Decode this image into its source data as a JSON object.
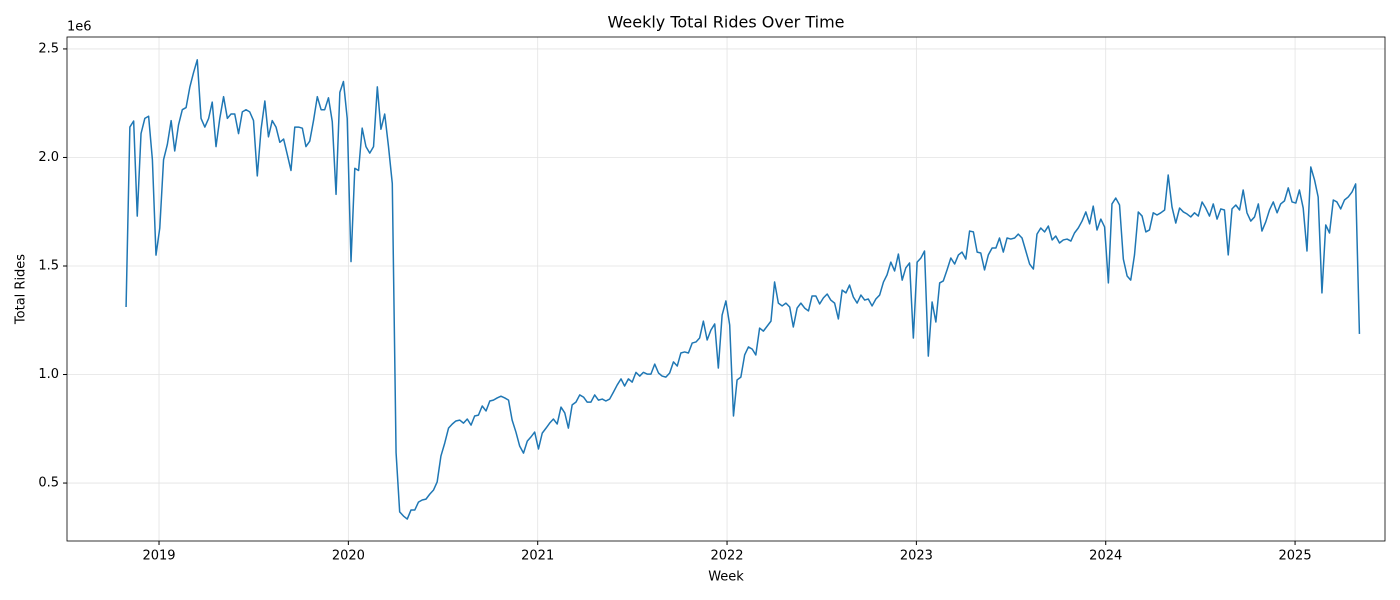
{
  "chart_data": {
    "type": "line",
    "title": "Weekly Total Rides Over Time",
    "x_label": "Week",
    "y_label": "Total Rides",
    "y_offset_label": "1e6",
    "color": "#1f77b4",
    "grid": true,
    "xlim": [
      2018.514,
      2025.475
    ],
    "xticks": [
      2019,
      2020,
      2021,
      2022,
      2023,
      2024,
      2025
    ],
    "ylim": [
      0.233,
      2.555
    ],
    "yticks": [
      0.5,
      {
        "value": 1,
        "label": "1.0"
      },
      1.5,
      {
        "value": 2,
        "label": "2.0"
      },
      2.5
    ],
    "x": [
      2018.826,
      2018.846,
      2018.866,
      2018.885,
      2018.905,
      2018.925,
      2018.945,
      2018.965,
      2018.984,
      2019.004,
      2019.024,
      2019.044,
      2019.064,
      2019.083,
      2019.103,
      2019.123,
      2019.143,
      2019.163,
      2019.182,
      2019.202,
      2019.222,
      2019.242,
      2019.262,
      2019.281,
      2019.301,
      2019.321,
      2019.341,
      2019.361,
      2019.38,
      2019.4,
      2019.42,
      2019.44,
      2019.46,
      2019.479,
      2019.499,
      2019.519,
      2019.539,
      2019.559,
      2019.578,
      2019.598,
      2019.618,
      2019.638,
      2019.658,
      2019.677,
      2019.697,
      2019.717,
      2019.737,
      2019.757,
      2019.776,
      2019.796,
      2019.816,
      2019.836,
      2019.856,
      2019.875,
      2019.895,
      2019.915,
      2019.935,
      2019.955,
      2019.974,
      2019.994,
      2020.014,
      2020.034,
      2020.054,
      2020.073,
      2020.093,
      2020.113,
      2020.133,
      2020.153,
      2020.172,
      2020.192,
      2020.212,
      2020.232,
      2020.252,
      2020.271,
      2020.291,
      2020.311,
      2020.331,
      2020.351,
      2020.37,
      2020.39,
      2020.41,
      2020.43,
      2020.45,
      2020.469,
      2020.489,
      2020.509,
      2020.529,
      2020.549,
      2020.568,
      2020.588,
      2020.608,
      2020.628,
      2020.648,
      2020.667,
      2020.687,
      2020.707,
      2020.727,
      2020.747,
      2020.766,
      2020.786,
      2020.806,
      2020.826,
      2020.846,
      2020.865,
      2020.885,
      2020.905,
      2020.925,
      2020.945,
      2020.964,
      2020.984,
      2021.004,
      2021.024,
      2021.044,
      2021.063,
      2021.083,
      2021.103,
      2021.123,
      2021.143,
      2021.162,
      2021.182,
      2021.202,
      2021.222,
      2021.242,
      2021.261,
      2021.281,
      2021.301,
      2021.321,
      2021.341,
      2021.36,
      2021.38,
      2021.4,
      2021.42,
      2021.44,
      2021.459,
      2021.479,
      2021.499,
      2021.519,
      2021.539,
      2021.558,
      2021.578,
      2021.598,
      2021.618,
      2021.638,
      2021.657,
      2021.677,
      2021.697,
      2021.717,
      2021.737,
      2021.756,
      2021.776,
      2021.796,
      2021.816,
      2021.836,
      2021.855,
      2021.875,
      2021.895,
      2021.915,
      2021.935,
      2021.954,
      2021.974,
      2021.994,
      2022.014,
      2022.034,
      2022.053,
      2022.073,
      2022.093,
      2022.113,
      2022.133,
      2022.152,
      2022.172,
      2022.192,
      2022.212,
      2022.232,
      2022.251,
      2022.271,
      2022.291,
      2022.311,
      2022.331,
      2022.35,
      2022.37,
      2022.39,
      2022.41,
      2022.43,
      2022.449,
      2022.469,
      2022.489,
      2022.509,
      2022.529,
      2022.548,
      2022.568,
      2022.588,
      2022.608,
      2022.628,
      2022.647,
      2022.667,
      2022.687,
      2022.707,
      2022.727,
      2022.746,
      2022.766,
      2022.786,
      2022.806,
      2022.826,
      2022.845,
      2022.865,
      2022.885,
      2022.905,
      2022.925,
      2022.944,
      2022.964,
      2022.984,
      2023.004,
      2023.024,
      2023.043,
      2023.063,
      2023.083,
      2023.103,
      2023.123,
      2023.142,
      2023.162,
      2023.182,
      2023.202,
      2023.222,
      2023.241,
      2023.261,
      2023.281,
      2023.301,
      2023.321,
      2023.34,
      2023.36,
      2023.38,
      2023.4,
      2023.42,
      2023.439,
      2023.459,
      2023.479,
      2023.499,
      2023.519,
      2023.538,
      2023.558,
      2023.578,
      2023.598,
      2023.618,
      2023.637,
      2023.657,
      2023.677,
      2023.697,
      2023.717,
      2023.736,
      2023.756,
      2023.776,
      2023.796,
      2023.816,
      2023.835,
      2023.855,
      2023.875,
      2023.895,
      2023.915,
      2023.934,
      2023.954,
      2023.974,
      2023.994,
      2024.014,
      2024.033,
      2024.053,
      2024.073,
      2024.093,
      2024.113,
      2024.132,
      2024.152,
      2024.172,
      2024.192,
      2024.212,
      2024.231,
      2024.251,
      2024.271,
      2024.291,
      2024.311,
      2024.33,
      2024.35,
      2024.37,
      2024.39,
      2024.41,
      2024.429,
      2024.449,
      2024.469,
      2024.489,
      2024.509,
      2024.528,
      2024.548,
      2024.568,
      2024.588,
      2024.608,
      2024.627,
      2024.647,
      2024.667,
      2024.687,
      2024.707,
      2024.726,
      2024.746,
      2024.766,
      2024.786,
      2024.806,
      2024.825,
      2024.845,
      2024.865,
      2024.885,
      2024.905,
      2024.924,
      2024.944,
      2024.964,
      2024.984,
      2025.004,
      2025.023,
      2025.043,
      2025.063,
      2025.083,
      2025.103,
      2025.122,
      2025.142,
      2025.162,
      2025.182,
      2025.202,
      2025.221,
      2025.241,
      2025.261,
      2025.281,
      2025.301,
      2025.32,
      2025.34
    ],
    "values": [
      1.311,
      2.14,
      2.168,
      1.73,
      2.11,
      2.18,
      2.19,
      1.99,
      1.55,
      1.675,
      1.99,
      2.06,
      2.17,
      2.03,
      2.15,
      2.22,
      2.23,
      2.325,
      2.39,
      2.45,
      2.18,
      2.14,
      2.18,
      2.255,
      2.05,
      2.18,
      2.28,
      2.18,
      2.2,
      2.2,
      2.11,
      2.21,
      2.22,
      2.21,
      2.17,
      1.915,
      2.13,
      2.26,
      2.095,
      2.17,
      2.14,
      2.07,
      2.085,
      2.015,
      1.94,
      2.14,
      2.14,
      2.135,
      2.05,
      2.075,
      2.17,
      2.28,
      2.22,
      2.22,
      2.275,
      2.165,
      1.83,
      2.3,
      2.35,
      2.18,
      1.52,
      1.95,
      1.94,
      2.135,
      2.05,
      2.02,
      2.05,
      2.325,
      2.13,
      2.2,
      2.05,
      1.88,
      0.64,
      0.367,
      0.348,
      0.334,
      0.376,
      0.376,
      0.412,
      0.422,
      0.426,
      0.449,
      0.468,
      0.505,
      0.625,
      0.684,
      0.753,
      0.772,
      0.786,
      0.79,
      0.776,
      0.795,
      0.767,
      0.809,
      0.813,
      0.855,
      0.832,
      0.878,
      0.882,
      0.892,
      0.9,
      0.892,
      0.882,
      0.79,
      0.735,
      0.67,
      0.638,
      0.693,
      0.712,
      0.735,
      0.657,
      0.73,
      0.753,
      0.776,
      0.795,
      0.772,
      0.85,
      0.823,
      0.753,
      0.86,
      0.873,
      0.906,
      0.896,
      0.873,
      0.873,
      0.906,
      0.882,
      0.887,
      0.878,
      0.887,
      0.919,
      0.952,
      0.98,
      0.947,
      0.98,
      0.965,
      1.01,
      0.993,
      1.01,
      1.002,
      1.002,
      1.048,
      1.007,
      0.993,
      0.988,
      1.007,
      1.058,
      1.039,
      1.099,
      1.104,
      1.099,
      1.145,
      1.15,
      1.168,
      1.246,
      1.159,
      1.205,
      1.233,
      1.03,
      1.274,
      1.339,
      1.228,
      0.809,
      0.975,
      0.988,
      1.09,
      1.127,
      1.117,
      1.09,
      1.214,
      1.2,
      1.223,
      1.246,
      1.426,
      1.329,
      1.316,
      1.329,
      1.311,
      1.219,
      1.306,
      1.329,
      1.306,
      1.293,
      1.362,
      1.362,
      1.325,
      1.353,
      1.371,
      1.343,
      1.329,
      1.256,
      1.389,
      1.376,
      1.412,
      1.357,
      1.329,
      1.366,
      1.343,
      1.348,
      1.316,
      1.348,
      1.366,
      1.426,
      1.459,
      1.518,
      1.477,
      1.555,
      1.435,
      1.491,
      1.514,
      1.168,
      1.518,
      1.537,
      1.569,
      1.085,
      1.334,
      1.242,
      1.422,
      1.431,
      1.482,
      1.537,
      1.509,
      1.551,
      1.564,
      1.532,
      1.661,
      1.657,
      1.564,
      1.56,
      1.482,
      1.551,
      1.583,
      1.583,
      1.629,
      1.564,
      1.629,
      1.624,
      1.629,
      1.647,
      1.629,
      1.569,
      1.509,
      1.486,
      1.647,
      1.675,
      1.657,
      1.684,
      1.62,
      1.638,
      1.606,
      1.62,
      1.624,
      1.615,
      1.652,
      1.675,
      1.707,
      1.749,
      1.694,
      1.776,
      1.666,
      1.716,
      1.68,
      1.422,
      1.786,
      1.813,
      1.781,
      1.532,
      1.454,
      1.435,
      1.551,
      1.749,
      1.73,
      1.657,
      1.666,
      1.745,
      1.735,
      1.745,
      1.758,
      1.919,
      1.772,
      1.698,
      1.767,
      1.749,
      1.74,
      1.726,
      1.745,
      1.73,
      1.795,
      1.767,
      1.73,
      1.786,
      1.716,
      1.763,
      1.758,
      1.551,
      1.763,
      1.781,
      1.758,
      1.85,
      1.745,
      1.707,
      1.726,
      1.786,
      1.661,
      1.703,
      1.758,
      1.795,
      1.745,
      1.786,
      1.8,
      1.86,
      1.795,
      1.79,
      1.85,
      1.767,
      1.569,
      1.956,
      1.896,
      1.818,
      1.376,
      1.689,
      1.652,
      1.804,
      1.795,
      1.763,
      1.804,
      1.818,
      1.841,
      1.878,
      1.187
    ]
  }
}
